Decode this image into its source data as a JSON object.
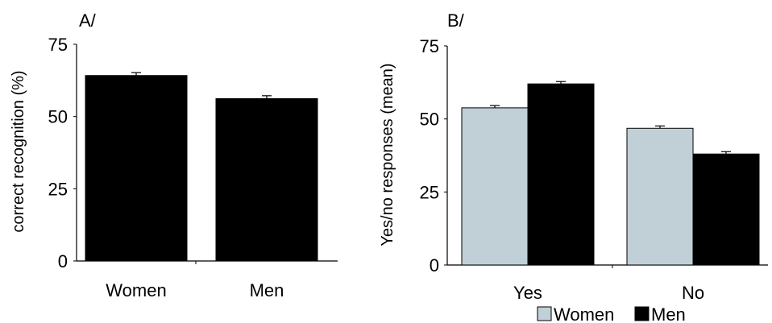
{
  "chart_data": [
    {
      "type": "bar",
      "panel_label": "A/",
      "categories": [
        "Women",
        "Men"
      ],
      "values": [
        64.2,
        56.2
      ],
      "errors": [
        1.0,
        1.0
      ],
      "ylabel": "correct recognition (%)",
      "xlabel": "",
      "ylim": [
        0,
        75
      ],
      "yticks": [
        "0",
        "25",
        "50",
        "75"
      ],
      "bar_color": "#000000",
      "grid": false
    },
    {
      "type": "bar",
      "panel_label": "B/",
      "categories": [
        "Yes",
        "No"
      ],
      "series": [
        {
          "name": "Women",
          "values": [
            53.8,
            46.8
          ],
          "errors": [
            0.8,
            0.8
          ],
          "color": "#c0d0d6"
        },
        {
          "name": "Men",
          "values": [
            62.0,
            38.0
          ],
          "errors": [
            0.8,
            0.8
          ],
          "color": "#000000"
        }
      ],
      "ylabel": "Yes/no responses (mean)",
      "xlabel": "",
      "ylim": [
        0,
        75
      ],
      "yticks": [
        "0",
        "25",
        "50",
        "75"
      ],
      "legend_position": "bottom",
      "grid": false
    }
  ]
}
